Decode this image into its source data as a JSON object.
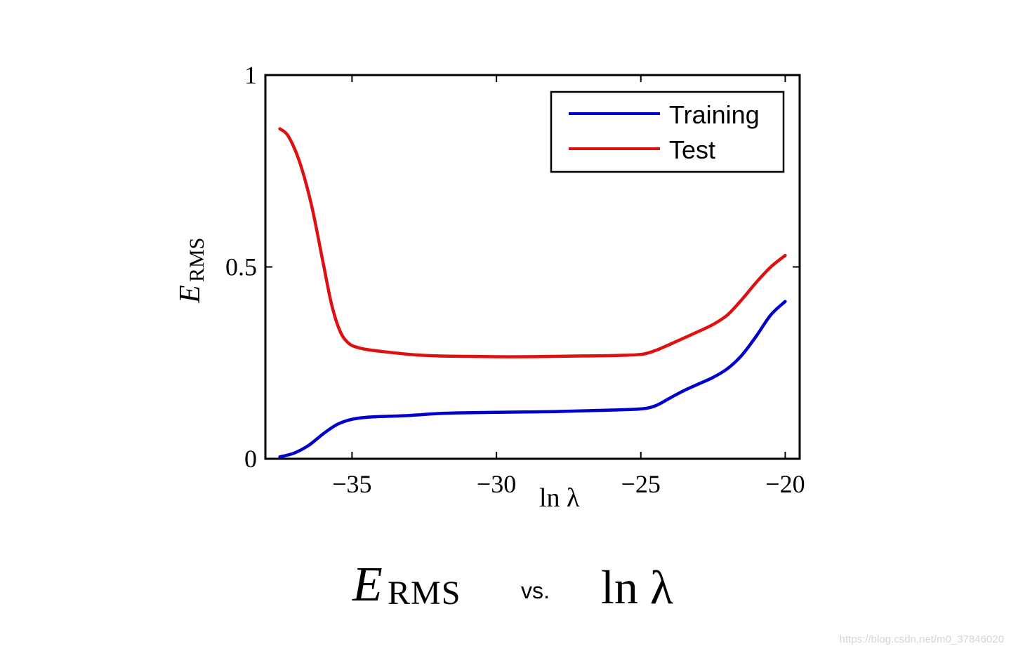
{
  "chart_data": {
    "type": "line",
    "title": "",
    "xlabel": "ln λ",
    "ylabel": "E",
    "ylabel_sub": "RMS",
    "xlim": [
      -38,
      -19.5
    ],
    "ylim": [
      0,
      1
    ],
    "xticks": [
      -35,
      -30,
      -25,
      -20
    ],
    "xtick_labels": [
      "−35",
      "−30",
      "−25",
      "−20"
    ],
    "yticks": [
      0,
      0.5,
      1
    ],
    "ytick_labels": [
      "0",
      "0.5",
      "1"
    ],
    "grid": false,
    "legend_position": "top-right",
    "series": [
      {
        "name": "Training",
        "color": "#0000cc",
        "x": [
          -37.5,
          -37.0,
          -36.5,
          -36.0,
          -35.5,
          -35.0,
          -34.5,
          -34.0,
          -33.0,
          -32.0,
          -31.0,
          -30.0,
          -29.0,
          -28.0,
          -27.0,
          -26.0,
          -25.0,
          -24.5,
          -24.0,
          -23.5,
          -23.0,
          -22.5,
          -22.0,
          -21.5,
          -21.0,
          -20.5,
          -20.0
        ],
        "y": [
          0.005,
          0.015,
          0.035,
          0.065,
          0.09,
          0.103,
          0.108,
          0.11,
          0.113,
          0.118,
          0.12,
          0.121,
          0.122,
          0.123,
          0.125,
          0.127,
          0.13,
          0.138,
          0.158,
          0.178,
          0.195,
          0.212,
          0.235,
          0.27,
          0.32,
          0.375,
          0.41
        ]
      },
      {
        "name": "Test",
        "color": "#dd1111",
        "x": [
          -37.5,
          -37.2,
          -36.8,
          -36.4,
          -36.0,
          -35.7,
          -35.4,
          -35.1,
          -34.8,
          -34.5,
          -34.0,
          -33.0,
          -32.0,
          -31.0,
          -30.0,
          -29.0,
          -28.0,
          -27.0,
          -26.0,
          -25.0,
          -24.5,
          -24.0,
          -23.5,
          -23.0,
          -22.5,
          -22.0,
          -21.5,
          -21.0,
          -20.5,
          -20.0
        ],
        "y": [
          0.86,
          0.84,
          0.77,
          0.66,
          0.51,
          0.4,
          0.33,
          0.3,
          0.29,
          0.285,
          0.28,
          0.272,
          0.268,
          0.267,
          0.266,
          0.266,
          0.267,
          0.268,
          0.269,
          0.272,
          0.282,
          0.298,
          0.315,
          0.332,
          0.35,
          0.375,
          0.415,
          0.46,
          0.5,
          0.53
        ]
      }
    ]
  },
  "caption": {
    "left_symbol": "E",
    "left_subscript": "RMS",
    "vs": "vs.",
    "right": "ln λ"
  },
  "watermark": "https://blog.csdn.net/m0_37846020"
}
